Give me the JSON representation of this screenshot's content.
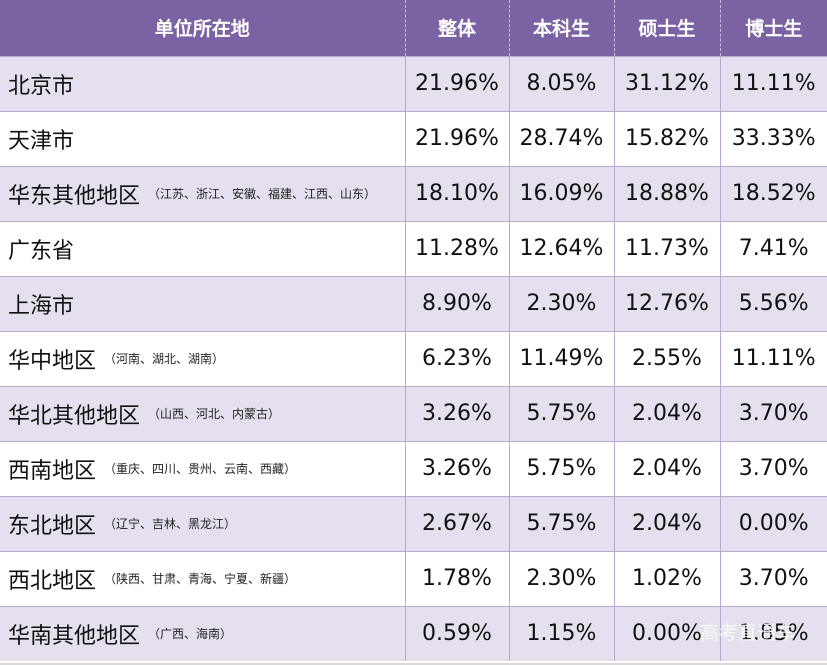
{
  "table": {
    "headers": [
      "单位所在地",
      "整体",
      "本科生",
      "硕士生",
      "博士生"
    ],
    "rows": [
      {
        "name": "北京市",
        "detail": "",
        "values": [
          "21.96%",
          "8.05%",
          "31.12%",
          "11.11%"
        ]
      },
      {
        "name": "天津市",
        "detail": "",
        "values": [
          "21.96%",
          "28.74%",
          "15.82%",
          "33.33%"
        ]
      },
      {
        "name": "华东其他地区",
        "detail": "（江苏、浙江、安徽、福建、江西、山东）",
        "values": [
          "18.10%",
          "16.09%",
          "18.88%",
          "18.52%"
        ]
      },
      {
        "name": "广东省",
        "detail": "",
        "values": [
          "11.28%",
          "12.64%",
          "11.73%",
          "7.41%"
        ]
      },
      {
        "name": "上海市",
        "detail": "",
        "values": [
          "8.90%",
          "2.30%",
          "12.76%",
          "5.56%"
        ]
      },
      {
        "name": "华中地区",
        "detail": "（河南、湖北、湖南）",
        "values": [
          "6.23%",
          "11.49%",
          "2.55%",
          "11.11%"
        ]
      },
      {
        "name": "华北其他地区",
        "detail": "（山西、河北、内蒙古）",
        "values": [
          "3.26%",
          "5.75%",
          "2.04%",
          "3.70%"
        ]
      },
      {
        "name": "西南地区",
        "detail": "（重庆、四川、贵州、云南、西藏）",
        "values": [
          "3.26%",
          "5.75%",
          "2.04%",
          "3.70%"
        ]
      },
      {
        "name": "东北地区",
        "detail": "（辽宁、吉林、黑龙江）",
        "values": [
          "2.67%",
          "5.75%",
          "2.04%",
          "0.00%"
        ]
      },
      {
        "name": "西北地区",
        "detail": "（陕西、甘肃、青海、宁夏、新疆）",
        "values": [
          "1.78%",
          "2.30%",
          "1.02%",
          "3.70%"
        ]
      },
      {
        "name": "华南其他地区",
        "detail": "（广西、海南）",
        "values": [
          "0.59%",
          "1.15%",
          "0.00%",
          "1.85%"
        ]
      }
    ]
  },
  "watermark": "高考直通车",
  "colors": {
    "header_bg": "#7b63a3",
    "stripe_bg": "#e6e0ee",
    "grid_line": "#b7a8d0"
  }
}
